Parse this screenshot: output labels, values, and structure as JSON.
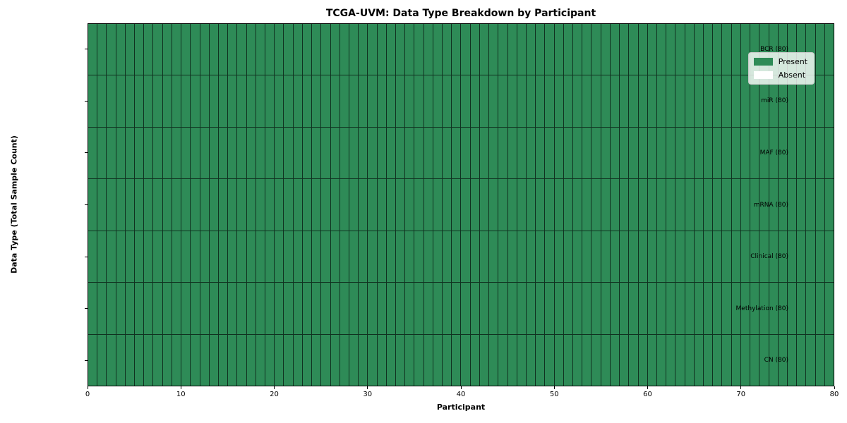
{
  "chart_data": {
    "type": "heatmap",
    "title": "TCGA-UVM: Data Type Breakdown by Participant",
    "xlabel": "Participant",
    "ylabel": "Data Type (Total Sample Count)",
    "x_range": [
      0,
      80
    ],
    "x_ticks": [
      0,
      10,
      20,
      30,
      40,
      50,
      60,
      70,
      80
    ],
    "n_participants": 80,
    "rows": [
      {
        "label": "BCR (80)",
        "data_type": "BCR",
        "total_samples": 80,
        "present": 80,
        "absent": 0
      },
      {
        "label": "miR (80)",
        "data_type": "miR",
        "total_samples": 80,
        "present": 80,
        "absent": 0
      },
      {
        "label": "MAF (80)",
        "data_type": "MAF",
        "total_samples": 80,
        "present": 80,
        "absent": 0
      },
      {
        "label": "mRNA (80)",
        "data_type": "mRNA",
        "total_samples": 80,
        "present": 80,
        "absent": 0
      },
      {
        "label": "Clinical (80)",
        "data_type": "Clinical",
        "total_samples": 80,
        "present": 80,
        "absent": 0
      },
      {
        "label": "Methylation (80)",
        "data_type": "Methylation",
        "total_samples": 80,
        "present": 80,
        "absent": 0
      },
      {
        "label": "CN (80)",
        "data_type": "CN",
        "total_samples": 80,
        "present": 80,
        "absent": 0
      }
    ],
    "cell_states": "all_present",
    "legend": {
      "position": "upper right",
      "entries": [
        {
          "label": "Present",
          "state": "present",
          "color": "#2E8B57"
        },
        {
          "label": "Absent",
          "state": "absent",
          "color": "#FFFFFF"
        }
      ]
    },
    "colors": {
      "present": "#2E8B57",
      "absent": "#FFFFFF",
      "cell_border": "#103120",
      "axis": "#000000",
      "background": "#FFFFFF"
    },
    "grid": false
  }
}
